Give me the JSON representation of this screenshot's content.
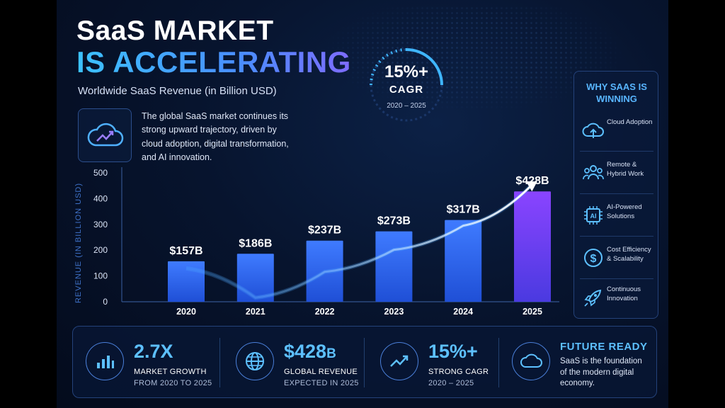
{
  "header": {
    "title_line1": "SaaS MARKET",
    "title_line2": "IS ACCELERATING",
    "subtitle": "Worldwide SaaS Revenue (in Billion USD)"
  },
  "intro": {
    "text": "The global SaaS market continues its strong upward trajectory, driven by cloud adoption, digital transformation, and AI innovation."
  },
  "cagr_badge": {
    "value": "15%+",
    "label": "CAGR",
    "years": "2020 – 2025"
  },
  "chart_data": {
    "type": "bar",
    "title": "Worldwide SaaS Revenue (in Billion USD)",
    "xlabel": "",
    "ylabel": "REVENUE (IN BILLION USD)",
    "categories": [
      "2020",
      "2021",
      "2022",
      "2023",
      "2024",
      "2025"
    ],
    "values": [
      157,
      186,
      237,
      273,
      317,
      428
    ],
    "data_labels": [
      "$157B",
      "$186B",
      "$237B",
      "$273B",
      "$317B",
      "$428B"
    ],
    "ylim": [
      0,
      500
    ],
    "yticks": [
      0,
      100,
      200,
      300,
      400,
      500
    ],
    "grid": false,
    "trend_arrow": true
  },
  "side_panel": {
    "title": "WHY SAAS IS WINNING",
    "items": [
      {
        "icon": "cloud-upload-icon",
        "label": "Cloud Adoption"
      },
      {
        "icon": "users-icon",
        "label": "Remote & Hybrid Work"
      },
      {
        "icon": "ai-chip-icon",
        "label": "AI-Powered Solutions"
      },
      {
        "icon": "dollar-icon",
        "label": "Cost Efficiency & Scalability"
      },
      {
        "icon": "rocket-icon",
        "label": "Continuous Innovation"
      }
    ]
  },
  "stats": [
    {
      "icon": "bar-chart-icon",
      "value": "2.7X",
      "label": "MARKET GROWTH",
      "sub": "FROM 2020 TO 2025"
    },
    {
      "icon": "globe-icon",
      "value": "$428",
      "value_suffix": "B",
      "label": "GLOBAL REVENUE",
      "sub": "EXPECTED IN 2025"
    },
    {
      "icon": "trend-up-icon",
      "value": "15%+",
      "label": "STRONG CAGR",
      "sub": "2020 – 2025"
    }
  ],
  "future": {
    "icon": "cloud-icon",
    "title": "FUTURE READY",
    "text": "SaaS is the foundation of the modern digital economy."
  },
  "colors": {
    "background": "#07142e",
    "accent_blue": "#4db3ff",
    "bar_start": "#2f6dff",
    "bar_end": "#7a3cff"
  }
}
